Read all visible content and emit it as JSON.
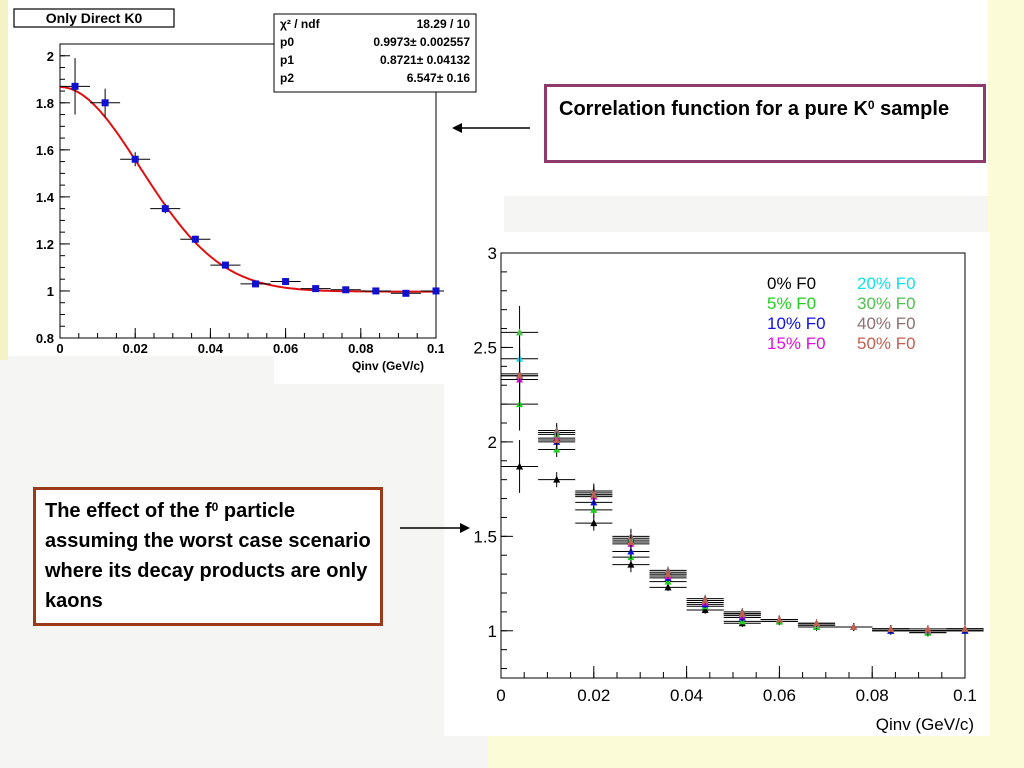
{
  "callouts": {
    "top_main": "Correlation function for a pure K",
    "top_sup": "0",
    "top_tail": " sample",
    "bottom_pre": "The effect of the f",
    "bottom_sup": "0",
    "bottom_post": " particle assuming  the worst case scenario where its decay products are only kaons"
  },
  "chart_data": [
    {
      "type": "scatter",
      "title": "Only Direct K0",
      "xlabel": "Qinv (GeV/c)",
      "ylabel": "",
      "xlim": [
        0,
        0.1
      ],
      "ylim": [
        0.8,
        2.05
      ],
      "xticks": [
        0,
        0.02,
        0.04,
        0.06,
        0.08,
        0.1
      ],
      "xtick_labels": [
        "0",
        "0.02",
        "0.04",
        "0.06",
        "0.08",
        "0.1"
      ],
      "yticks": [
        0.8,
        1,
        1.2,
        1.4,
        1.6,
        1.8,
        2
      ],
      "ytick_labels": [
        "0.8",
        "1",
        "1.2",
        "1.4",
        "1.6",
        "1.8",
        "2"
      ],
      "points_color": "#1010d0",
      "fit_color": "#e01010",
      "series": [
        {
          "x": [
            0.004,
            0.012,
            0.02,
            0.028,
            0.036,
            0.044,
            0.052,
            0.06,
            0.068,
            0.076,
            0.084,
            0.092,
            0.1
          ],
          "y": [
            1.87,
            1.8,
            1.56,
            1.35,
            1.22,
            1.11,
            1.03,
            1.04,
            1.01,
            1.005,
            1.0,
            0.99,
            1.0
          ],
          "yerr": [
            0.12,
            0.06,
            0.03,
            0.02,
            0.015,
            0.012,
            0.01,
            0.01,
            0.01,
            0.008,
            0.008,
            0.008,
            0.008
          ]
        }
      ],
      "fit": {
        "p0": 0.9973,
        "p1": 0.8721,
        "p2": 6.547
      },
      "stats_box": [
        {
          "label": "χ² / ndf",
          "value": "18.29 / 10"
        },
        {
          "label": "p0",
          "value": "0.9973± 0.002557"
        },
        {
          "label": "p1",
          "value": "0.8721± 0.04132"
        },
        {
          "label": "p2",
          "value": "6.547±  0.16"
        }
      ]
    },
    {
      "type": "scatter",
      "title": "",
      "xlabel": "Qinv (GeV/c)",
      "ylabel": "",
      "xlim": [
        0,
        0.1
      ],
      "ylim": [
        0.75,
        3
      ],
      "xticks": [
        0,
        0.02,
        0.04,
        0.06,
        0.08,
        0.1
      ],
      "xtick_labels": [
        "0",
        "0.02",
        "0.04",
        "0.06",
        "0.08",
        "0.1"
      ],
      "yticks": [
        1,
        1.5,
        2,
        2.5,
        3
      ],
      "ytick_labels": [
        "1",
        "1.5",
        "2",
        "2.5",
        "3"
      ],
      "x": [
        0.004,
        0.012,
        0.02,
        0.028,
        0.036,
        0.044,
        0.052,
        0.06,
        0.068,
        0.076,
        0.084,
        0.092,
        0.1
      ],
      "series": [
        {
          "name": "0% F0",
          "color": "#000000",
          "values": [
            1.87,
            1.8,
            1.57,
            1.35,
            1.23,
            1.11,
            1.04,
            1.05,
            1.02,
            1.02,
            1.0,
            0.99,
            1.0
          ]
        },
        {
          "name": "5% F0",
          "color": "#20d020",
          "values": [
            2.2,
            1.96,
            1.64,
            1.39,
            1.26,
            1.13,
            1.05,
            1.05,
            1.02,
            1.02,
            1.0,
            0.99,
            1.0
          ]
        },
        {
          "name": "10% F0",
          "color": "#1010e0",
          "values": [
            2.35,
            2.0,
            1.68,
            1.42,
            1.28,
            1.14,
            1.07,
            1.06,
            1.03,
            1.02,
            1.0,
            1.0,
            1.0
          ]
        },
        {
          "name": "15% F0",
          "color": "#e010e0",
          "values": [
            2.33,
            2.02,
            1.71,
            1.46,
            1.29,
            1.15,
            1.08,
            1.06,
            1.03,
            1.02,
            1.01,
            1.0,
            1.01
          ]
        },
        {
          "name": "20% F0",
          "color": "#10e0f0",
          "values": [
            2.44,
            2.05,
            1.73,
            1.49,
            1.31,
            1.16,
            1.09,
            1.06,
            1.03,
            1.02,
            1.01,
            1.0,
            1.01
          ]
        },
        {
          "name": "30% F0",
          "color": "#50c050",
          "values": [
            2.58,
            2.04,
            1.72,
            1.48,
            1.3,
            1.16,
            1.09,
            1.06,
            1.03,
            1.02,
            1.01,
            1.0,
            1.01
          ]
        },
        {
          "name": "40% F0",
          "color": "#907070",
          "values": [
            2.36,
            2.06,
            1.74,
            1.5,
            1.32,
            1.17,
            1.1,
            1.06,
            1.04,
            1.02,
            1.01,
            1.0,
            1.01
          ]
        },
        {
          "name": "50% F0",
          "color": "#c06050",
          "values": [
            2.35,
            2.01,
            1.72,
            1.47,
            1.3,
            1.16,
            1.09,
            1.06,
            1.04,
            1.02,
            1.01,
            1.01,
            1.01
          ]
        }
      ]
    }
  ]
}
